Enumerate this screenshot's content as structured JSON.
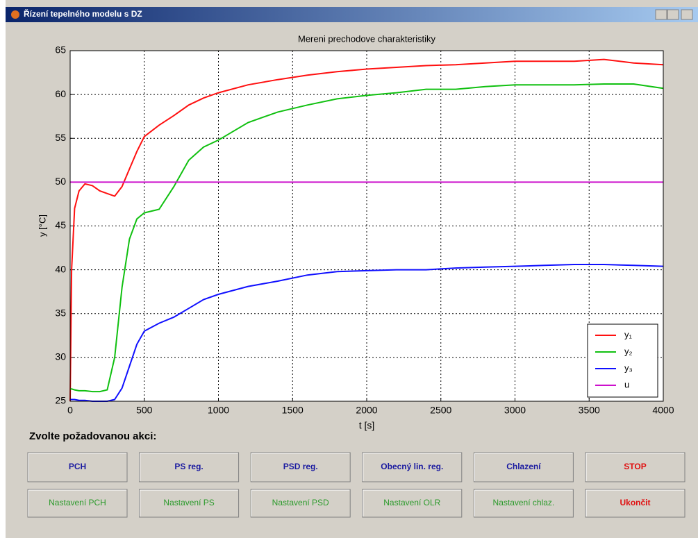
{
  "window": {
    "title": "Řízení tepelného modelu s DZ"
  },
  "chart_data": {
    "type": "line",
    "title": "Mereni prechodove charakteristiky",
    "xlabel": "t [s]",
    "ylabel": "y [°C]",
    "x": [
      0,
      10,
      30,
      60,
      100,
      150,
      200,
      250,
      300,
      350,
      400,
      450,
      500,
      600,
      700,
      800,
      900,
      1000,
      1200,
      1400,
      1600,
      1800,
      2000,
      2200,
      2400,
      2600,
      2800,
      3000,
      3200,
      3400,
      3600,
      3800,
      4000
    ],
    "series": [
      {
        "name": "y₁",
        "color": "#ff1010",
        "values": [
          25,
          40,
          47,
          49,
          49.8,
          49.6,
          49,
          48.7,
          48.4,
          49.5,
          51.5,
          53.5,
          55.2,
          56.5,
          57.6,
          58.8,
          59.6,
          60.2,
          61.1,
          61.7,
          62.2,
          62.6,
          62.9,
          63.1,
          63.3,
          63.4,
          63.6,
          63.8,
          63.8,
          63.8,
          64.0,
          63.6,
          63.4
        ]
      },
      {
        "name": "y₂",
        "color": "#10c010",
        "values": [
          26.4,
          26.4,
          26.3,
          26.2,
          26.2,
          26.1,
          26.1,
          26.3,
          30,
          38,
          43.5,
          45.8,
          46.5,
          46.9,
          49.5,
          52.5,
          54,
          54.8,
          56.8,
          58.0,
          58.8,
          59.5,
          59.9,
          60.2,
          60.6,
          60.6,
          60.9,
          61.1,
          61.1,
          61.1,
          61.2,
          61.2,
          60.7
        ]
      },
      {
        "name": "y₃",
        "color": "#1010ff",
        "values": [
          25.2,
          25.2,
          25.2,
          25.1,
          25.1,
          25.0,
          25.0,
          25.0,
          25.2,
          26.5,
          29,
          31.5,
          33,
          33.9,
          34.6,
          35.6,
          36.6,
          37.2,
          38.1,
          38.7,
          39.4,
          39.8,
          39.9,
          40.0,
          40.0,
          40.2,
          40.3,
          40.4,
          40.5,
          40.6,
          40.6,
          40.5,
          40.4
        ]
      },
      {
        "name": "u",
        "color": "#cc10cc",
        "values": [
          50,
          50,
          50,
          50,
          50,
          50,
          50,
          50,
          50,
          50,
          50,
          50,
          50,
          50,
          50,
          50,
          50,
          50,
          50,
          50,
          50,
          50,
          50,
          50,
          50,
          50,
          50,
          50,
          50,
          50,
          50,
          50,
          50
        ]
      }
    ],
    "xlim": [
      0,
      4000
    ],
    "xticks": [
      0,
      500,
      1000,
      1500,
      2000,
      2500,
      3000,
      3500,
      4000
    ],
    "ylim": [
      25,
      65
    ],
    "yticks": [
      25,
      30,
      35,
      40,
      45,
      50,
      55,
      60,
      65
    ],
    "grid": true,
    "legend": "lower right"
  },
  "prompt": "Zvolte požadovanou akci:",
  "buttons": [
    [
      {
        "label": "PCH",
        "color": "#1a1aa0"
      },
      {
        "label": "PS reg.",
        "color": "#1a1aa0"
      },
      {
        "label": "PSD reg.",
        "color": "#1a1aa0"
      },
      {
        "label": "Obecný lin. reg.",
        "color": "#1a1aa0"
      },
      {
        "label": "Chlazení",
        "color": "#1a1aa0"
      },
      {
        "label": "STOP",
        "color": "#e01010"
      }
    ],
    [
      {
        "label": "Nastavení PCH",
        "color": "#2a9a2a"
      },
      {
        "label": "Nastavení PS",
        "color": "#2a9a2a"
      },
      {
        "label": "Nastavení PSD",
        "color": "#2a9a2a"
      },
      {
        "label": "Nastavení OLR",
        "color": "#2a9a2a"
      },
      {
        "label": "Nastavení chlaz.",
        "color": "#2a9a2a"
      },
      {
        "label": "Ukončit",
        "color": "#e01010"
      }
    ]
  ]
}
